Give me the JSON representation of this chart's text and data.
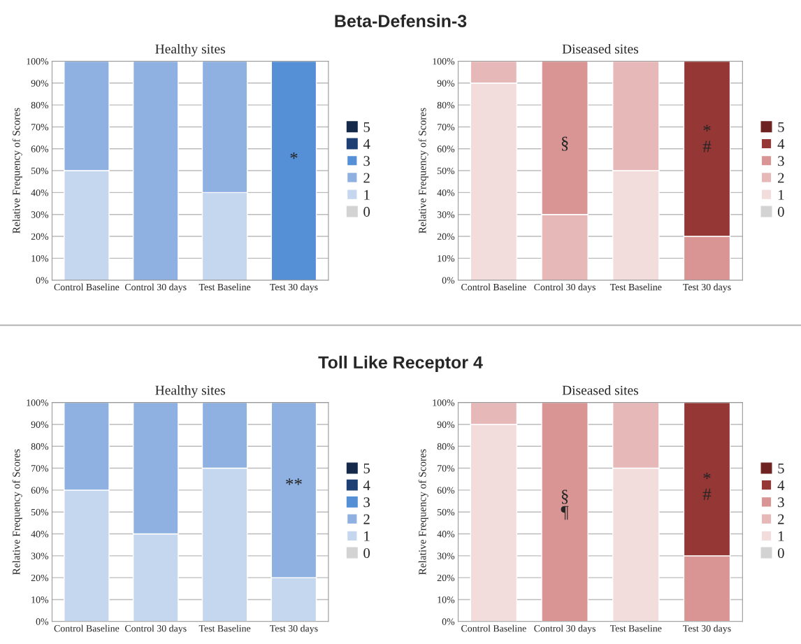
{
  "chart_data": [
    {
      "type": "bar",
      "stacked": true,
      "title": "Healthy sites",
      "ylabel": "Relative Frequency of Scores",
      "categories": [
        "Control Baseline",
        "Control 30 days",
        "Test Baseline",
        "Test 30 days"
      ],
      "series": [
        {
          "name": "0",
          "color": "#d3d3d3",
          "values": [
            null,
            null,
            null,
            null
          ]
        },
        {
          "name": "1",
          "color": "#c5d7ef",
          "values": [
            50,
            null,
            40,
            null
          ]
        },
        {
          "name": "2",
          "color": "#8eb1e1",
          "values": [
            50,
            100,
            60,
            null
          ]
        },
        {
          "name": "3",
          "color": "#5590d6",
          "values": [
            null,
            null,
            null,
            100
          ]
        },
        {
          "name": "4",
          "color": "#1d3f73",
          "values": [
            null,
            null,
            null,
            null
          ]
        },
        {
          "name": "5",
          "color": "#15294a",
          "values": [
            null,
            null,
            null,
            null
          ]
        }
      ],
      "ylim": [
        0,
        100
      ],
      "yticks": [
        {
          "value": 0,
          "label": "0%"
        },
        {
          "value": 10,
          "label": "10%"
        },
        {
          "value": 20,
          "label": "20%"
        },
        {
          "value": 30,
          "label": "30%"
        },
        {
          "value": 40,
          "label": "40%"
        },
        {
          "value": 50,
          "label": "50%"
        },
        {
          "value": 60,
          "label": "60%"
        },
        {
          "value": 70,
          "label": "70%"
        },
        {
          "value": 80,
          "label": "80%"
        },
        {
          "value": 90,
          "label": "90%"
        },
        {
          "value": 100,
          "label": "100%"
        }
      ],
      "grid": "y",
      "legend": "right",
      "annotations": [
        "Beta-Defensin-3",
        "*"
      ]
    },
    {
      "type": "bar",
      "stacked": true,
      "title": "Diseased sites",
      "ylabel": "Relative Frequency of Scores",
      "categories": [
        "Control Baseline",
        "Control 30 days",
        "Test Baseline",
        "Test 30 days"
      ],
      "series": [
        {
          "name": "0",
          "color": "#d3d3d3",
          "values": [
            null,
            null,
            null,
            null
          ]
        },
        {
          "name": "1",
          "color": "#f2dcdc",
          "values": [
            90,
            null,
            50,
            null
          ]
        },
        {
          "name": "2",
          "color": "#e6b8b7",
          "values": [
            10,
            30,
            50,
            null
          ]
        },
        {
          "name": "3",
          "color": "#d99594",
          "values": [
            null,
            70,
            null,
            20
          ]
        },
        {
          "name": "4",
          "color": "#953735",
          "values": [
            null,
            null,
            null,
            80
          ]
        },
        {
          "name": "5",
          "color": "#6e2221",
          "values": [
            null,
            null,
            null,
            null
          ]
        }
      ],
      "ylim": [
        0,
        100
      ],
      "yticks": [
        {
          "value": 0,
          "label": "0%"
        },
        {
          "value": 10,
          "label": "10%"
        },
        {
          "value": 20,
          "label": "20%"
        },
        {
          "value": 30,
          "label": "30%"
        },
        {
          "value": 40,
          "label": "40%"
        },
        {
          "value": 50,
          "label": "50%"
        },
        {
          "value": 60,
          "label": "60%"
        },
        {
          "value": 70,
          "label": "70%"
        },
        {
          "value": 80,
          "label": "80%"
        },
        {
          "value": 90,
          "label": "90%"
        },
        {
          "value": 100,
          "label": "100%"
        }
      ],
      "grid": "y",
      "legend": "right",
      "annotations": [
        "§",
        "*\n#"
      ]
    },
    {
      "type": "bar",
      "stacked": true,
      "title": "Healthy sites",
      "ylabel": "Relative Frequency of Scores",
      "categories": [
        "Control Baseline",
        "Control 30 days",
        "Test Baseline",
        "Test 30 days"
      ],
      "series": [
        {
          "name": "0",
          "color": "#d3d3d3",
          "values": [
            null,
            null,
            null,
            null
          ]
        },
        {
          "name": "1",
          "color": "#c5d7ef",
          "values": [
            60,
            40,
            70,
            20
          ]
        },
        {
          "name": "2",
          "color": "#8eb1e1",
          "values": [
            40,
            60,
            30,
            80
          ]
        },
        {
          "name": "3",
          "color": "#5590d6",
          "values": [
            null,
            null,
            null,
            null
          ]
        },
        {
          "name": "4",
          "color": "#1d3f73",
          "values": [
            null,
            null,
            null,
            null
          ]
        },
        {
          "name": "5",
          "color": "#15294a",
          "values": [
            null,
            null,
            null,
            null
          ]
        }
      ],
      "ylim": [
        0,
        100
      ],
      "yticks": [
        {
          "value": 0,
          "label": "0%"
        },
        {
          "value": 10,
          "label": "10%"
        },
        {
          "value": 20,
          "label": "20%"
        },
        {
          "value": 30,
          "label": "30%"
        },
        {
          "value": 40,
          "label": "40%"
        },
        {
          "value": 50,
          "label": "50%"
        },
        {
          "value": 60,
          "label": "60%"
        },
        {
          "value": 70,
          "label": "70%"
        },
        {
          "value": 80,
          "label": "80%"
        },
        {
          "value": 90,
          "label": "90%"
        },
        {
          "value": 100,
          "label": "100%"
        }
      ],
      "grid": "y",
      "legend": "right",
      "annotations": [
        "Toll Like Receptor 4",
        "**"
      ]
    },
    {
      "type": "bar",
      "stacked": true,
      "title": "Diseased sites",
      "ylabel": "Relative Frequency of Scores",
      "categories": [
        "Control Baseline",
        "Control 30 days",
        "Test Baseline",
        "Test 30 days"
      ],
      "series": [
        {
          "name": "0",
          "color": "#d3d3d3",
          "values": [
            null,
            null,
            null,
            null
          ]
        },
        {
          "name": "1",
          "color": "#f2dcdc",
          "values": [
            90,
            null,
            70,
            null
          ]
        },
        {
          "name": "2",
          "color": "#e6b8b7",
          "values": [
            10,
            null,
            30,
            null
          ]
        },
        {
          "name": "3",
          "color": "#d99594",
          "values": [
            null,
            100,
            null,
            30
          ]
        },
        {
          "name": "4",
          "color": "#953735",
          "values": [
            null,
            null,
            null,
            70
          ]
        },
        {
          "name": "5",
          "color": "#6e2221",
          "values": [
            null,
            null,
            null,
            null
          ]
        }
      ],
      "ylim": [
        0,
        100
      ],
      "yticks": [
        {
          "value": 0,
          "label": "0%"
        },
        {
          "value": 10,
          "label": "10%"
        },
        {
          "value": 20,
          "label": "20%"
        },
        {
          "value": 30,
          "label": "30%"
        },
        {
          "value": 40,
          "label": "40%"
        },
        {
          "value": 50,
          "label": "50%"
        },
        {
          "value": 60,
          "label": "60%"
        },
        {
          "value": 70,
          "label": "70%"
        },
        {
          "value": 80,
          "label": "80%"
        },
        {
          "value": 90,
          "label": "90%"
        },
        {
          "value": 100,
          "label": "100%"
        }
      ],
      "grid": "y",
      "legend": "right",
      "annotations": [
        "§\n¶",
        "*\n#"
      ]
    }
  ]
}
